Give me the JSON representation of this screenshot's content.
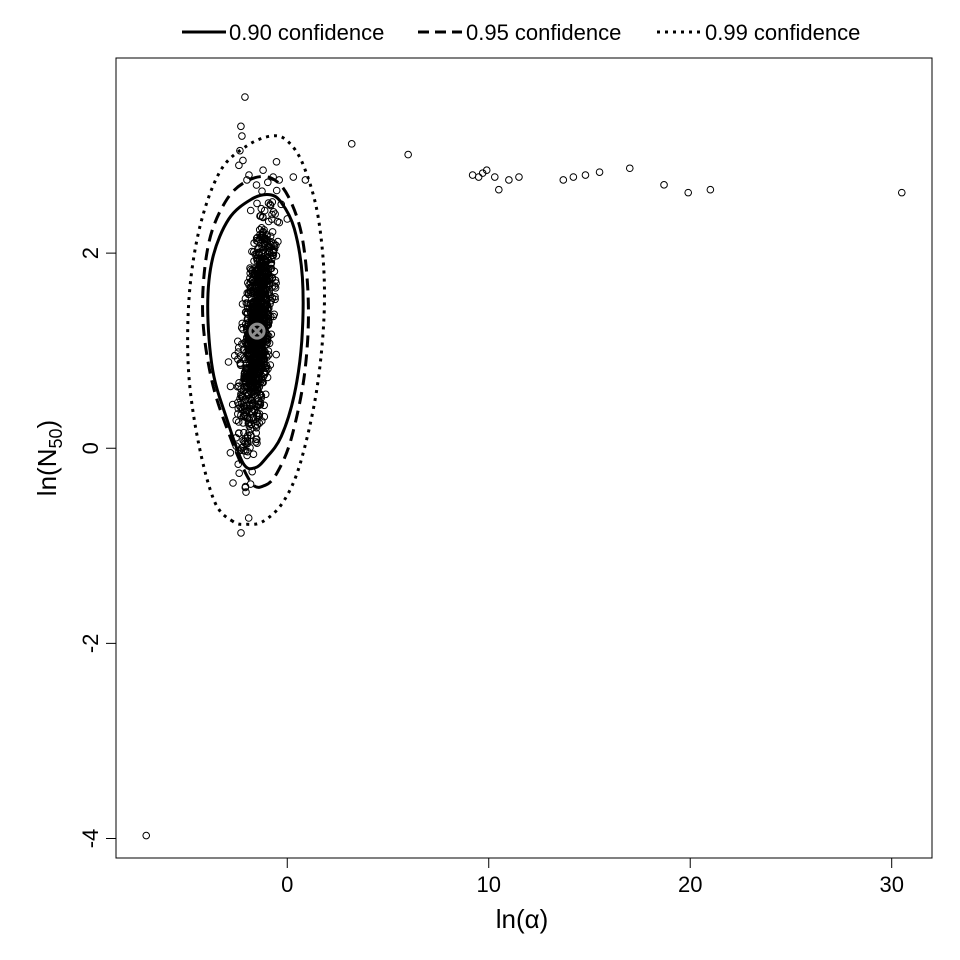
{
  "chart_data": {
    "type": "scatter",
    "title": "",
    "xlabel": "ln(α)",
    "ylabel": "ln(N50)",
    "ylabel_parts": {
      "prefix": "ln(",
      "main": "N",
      "sub": "50",
      "suffix": ")"
    },
    "xlim": [
      -8.5,
      32.0
    ],
    "ylim": [
      -4.2,
      4.0
    ],
    "x_ticks": [
      0,
      10,
      20,
      30
    ],
    "x_tick_labels": [
      "0",
      "10",
      "20",
      "30"
    ],
    "y_ticks": [
      -4,
      -2,
      0,
      2
    ],
    "y_tick_labels": [
      "-4",
      "-2",
      "0",
      "2"
    ],
    "grid": false,
    "legend": {
      "placement": "top",
      "entries": [
        {
          "label": "0.90 confidence",
          "line_style": "solid"
        },
        {
          "label": "0.95 confidence",
          "line_style": "dashed"
        },
        {
          "label": "0.99 confidence",
          "line_style": "dotted"
        }
      ]
    },
    "point_estimate": {
      "x": -1.5,
      "y": 1.2,
      "marker": "circle-x",
      "color": "#8c8c8c"
    },
    "confidence_regions": [
      {
        "level": 0.9,
        "line_style": "solid",
        "outline": [
          [
            -1.05,
            -0.1
          ],
          [
            -1.6,
            -0.2
          ],
          [
            -2.2,
            -0.15
          ],
          [
            -3.0,
            0.3
          ],
          [
            -3.7,
            0.8
          ],
          [
            -3.95,
            1.45
          ],
          [
            -3.7,
            1.95
          ],
          [
            -2.9,
            2.35
          ],
          [
            -1.8,
            2.55
          ],
          [
            -0.9,
            2.6
          ],
          [
            -0.3,
            2.52
          ],
          [
            0.35,
            2.25
          ],
          [
            0.75,
            1.75
          ],
          [
            0.72,
            1.1
          ],
          [
            0.35,
            0.55
          ],
          [
            -0.3,
            0.12
          ],
          [
            -1.05,
            -0.1
          ]
        ]
      },
      {
        "level": 0.95,
        "line_style": "dashed",
        "outline": [
          [
            -1.1,
            -0.38
          ],
          [
            -1.8,
            -0.35
          ],
          [
            -2.8,
            0.1
          ],
          [
            -3.75,
            0.7
          ],
          [
            -4.2,
            1.4
          ],
          [
            -3.9,
            2.1
          ],
          [
            -3.0,
            2.55
          ],
          [
            -1.9,
            2.75
          ],
          [
            -0.8,
            2.77
          ],
          [
            0.05,
            2.58
          ],
          [
            0.75,
            2.15
          ],
          [
            1.05,
            1.45
          ],
          [
            0.85,
            0.75
          ],
          [
            0.2,
            0.1
          ],
          [
            -0.5,
            -0.25
          ],
          [
            -1.1,
            -0.38
          ]
        ]
      },
      {
        "level": 0.99,
        "line_style": "dotted",
        "outline": [
          [
            -2.7,
            -0.75
          ],
          [
            -3.6,
            -0.55
          ],
          [
            -4.4,
            0.05
          ],
          [
            -4.9,
            0.8
          ],
          [
            -4.85,
            1.6
          ],
          [
            -4.3,
            2.3
          ],
          [
            -3.3,
            2.85
          ],
          [
            -2.0,
            3.1
          ],
          [
            -0.8,
            3.2
          ],
          [
            0.0,
            3.15
          ],
          [
            0.8,
            2.9
          ],
          [
            1.55,
            2.35
          ],
          [
            1.85,
            1.55
          ],
          [
            1.5,
            0.65
          ],
          [
            0.65,
            -0.15
          ],
          [
            -0.2,
            -0.55
          ],
          [
            -1.2,
            -0.75
          ],
          [
            -2.0,
            -0.78
          ],
          [
            -2.7,
            -0.75
          ]
        ]
      }
    ],
    "bootstrap_cloud": {
      "x_center": -1.5,
      "y_center": 1.2,
      "count": 1100
    },
    "outlier_points": [
      [
        -2.1,
        3.6
      ],
      [
        -2.3,
        3.3
      ],
      [
        -2.25,
        3.2
      ],
      [
        -2.35,
        3.05
      ],
      [
        -2.4,
        2.9
      ],
      [
        -2.2,
        2.95
      ],
      [
        -1.9,
        2.8
      ],
      [
        -2.0,
        2.75
      ],
      [
        -1.2,
        2.85
      ],
      [
        -0.7,
        2.78
      ],
      [
        -0.4,
        2.75
      ],
      [
        0.3,
        2.78
      ],
      [
        0.9,
        2.75
      ],
      [
        -0.3,
        2.5
      ],
      [
        0.0,
        2.35
      ],
      [
        -0.6,
        2.4
      ],
      [
        3.2,
        3.12
      ],
      [
        6.0,
        3.01
      ],
      [
        9.2,
        2.8
      ],
      [
        9.5,
        2.78
      ],
      [
        9.7,
        2.82
      ],
      [
        9.9,
        2.85
      ],
      [
        10.3,
        2.78
      ],
      [
        10.5,
        2.65
      ],
      [
        11.0,
        2.75
      ],
      [
        11.5,
        2.78
      ],
      [
        13.7,
        2.75
      ],
      [
        14.2,
        2.78
      ],
      [
        14.8,
        2.8
      ],
      [
        15.5,
        2.83
      ],
      [
        17.0,
        2.87
      ],
      [
        18.7,
        2.7
      ],
      [
        19.9,
        2.62
      ],
      [
        21.0,
        2.65
      ],
      [
        30.5,
        2.62
      ],
      [
        -7.0,
        -3.97
      ]
    ]
  }
}
